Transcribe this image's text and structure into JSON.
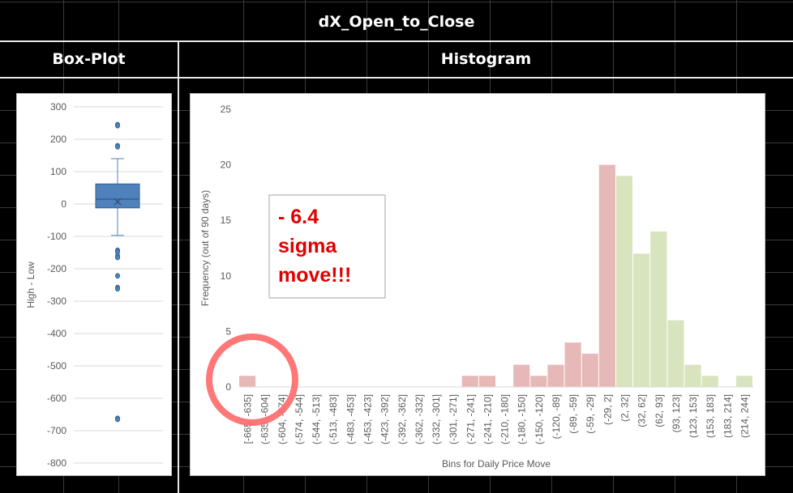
{
  "sheet": {
    "main_title": "dX_Open_to_Close",
    "boxplot_header": "Box-Plot",
    "histogram_header": "Histogram"
  },
  "annotation": {
    "lines": [
      "- 6.4",
      "sigma",
      "move!!!"
    ],
    "color": "#e00000",
    "circle_color": "#ff6b6b"
  },
  "chart_data": [
    {
      "type": "box",
      "ylabel": "High - Low",
      "ylim": [
        -800,
        300
      ],
      "yticks": [
        300,
        200,
        100,
        0,
        -100,
        -200,
        -300,
        -400,
        -500,
        -600,
        -700,
        -800
      ],
      "q1": -12,
      "median": 15,
      "q3": 62,
      "mean": 7,
      "whisker_low": -97,
      "whisker_high": 140,
      "outliers": [
        245,
        242,
        180,
        177,
        -143,
        -148,
        -160,
        -165,
        -222,
        -258,
        -262,
        -662,
        -665
      ],
      "color": "#4f81bd"
    },
    {
      "type": "bar",
      "xlabel": "Bins for Daily Price Move",
      "ylabel": "Frequency (out of 90 days)",
      "ylim": [
        0,
        25
      ],
      "yticks": [
        0,
        5,
        10,
        15,
        20,
        25
      ],
      "categories": [
        "[-665, -635]",
        "(-635, -604]",
        "(-604, -574]",
        "(-574, -544]",
        "(-544, -513]",
        "(-513, -483]",
        "(-483, -453]",
        "(-453, -423]",
        "(-423, -392]",
        "(-392, -362]",
        "(-362, -332]",
        "(-332, -301]",
        "(-301, -271]",
        "(-271, -241]",
        "(-241, -210]",
        "(-210, -180]",
        "(-180, -150]",
        "(-150, -120]",
        "(-120, -89]",
        "(-89, -59]",
        "(-59, -29]",
        "(-29, 2]",
        "(2, 32]",
        "(32, 62]",
        "(62, 93]",
        "(93, 123]",
        "(123, 153]",
        "(153, 183]",
        "(183, 214]",
        "(214, 244]"
      ],
      "values": [
        1,
        0,
        0,
        0,
        0,
        0,
        0,
        0,
        0,
        0,
        0,
        0,
        0,
        1,
        1,
        0,
        2,
        1,
        2,
        4,
        3,
        20,
        19,
        12,
        14,
        6,
        2,
        1,
        0,
        1
      ],
      "negative_color": "#e6b9b8",
      "positive_color": "#d7e4bd"
    }
  ]
}
